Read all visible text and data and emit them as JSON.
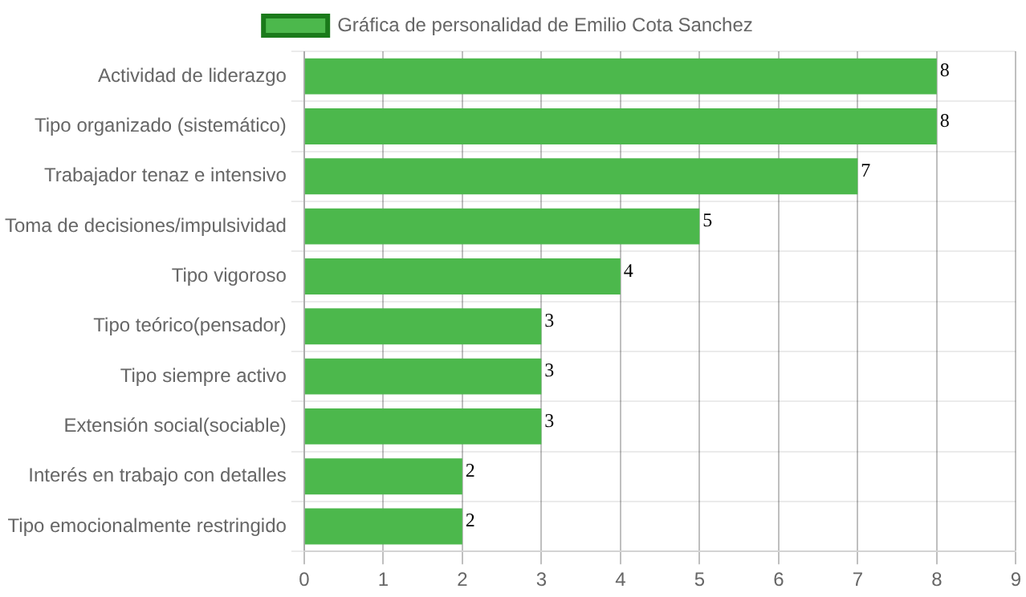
{
  "chart_data": {
    "type": "bar",
    "orientation": "horizontal",
    "categories": [
      "Actividad de liderazgo",
      "Tipo organizado (sistemático)",
      "Trabajador tenaz e intensivo",
      "Toma de decisiones/impulsividad",
      "Tipo vigoroso",
      "Tipo teórico(pensador)",
      "Tipo siempre activo",
      "Extensión social(sociable)",
      "Interés en trabajo con detalles",
      "Tipo emocionalmente restringido"
    ],
    "series": [
      {
        "name": "Gráfica de personalidad de Emilio Cota Sanchez",
        "color": "#4cb84c",
        "values": [
          8,
          8,
          7,
          5,
          4,
          3,
          3,
          3,
          2,
          2
        ]
      }
    ],
    "xlim": [
      0,
      9
    ],
    "xticks": [
      0,
      1,
      2,
      3,
      4,
      5,
      6,
      7,
      8,
      9
    ],
    "grid": true,
    "legend": "top",
    "data_labels": true
  }
}
